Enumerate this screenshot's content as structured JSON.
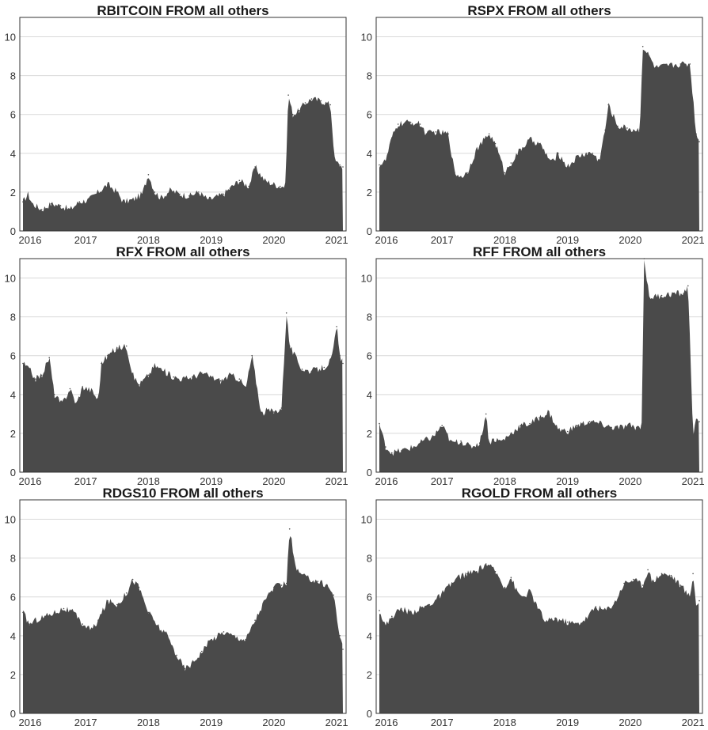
{
  "chart_data": [
    {
      "type": "area",
      "title": "RBITCOIN FROM all others",
      "xlabel": "",
      "ylabel": "",
      "xlim": [
        2015.95,
        2021.15
      ],
      "ylim": [
        0,
        11
      ],
      "x_ticks": [
        "2016",
        "2017",
        "2018",
        "2019",
        "2020",
        "2021"
      ],
      "y_ticks": [
        "0",
        "2",
        "4",
        "6",
        "8",
        "10"
      ],
      "grid": "horizontal",
      "x": [
        2016.0,
        2016.08,
        2016.15,
        2016.3,
        2016.45,
        2016.6,
        2016.75,
        2016.9,
        2017.05,
        2017.2,
        2017.35,
        2017.5,
        2017.6,
        2017.75,
        2017.9,
        2018.0,
        2018.1,
        2018.2,
        2018.35,
        2018.5,
        2018.65,
        2018.8,
        2018.95,
        2019.05,
        2019.2,
        2019.3,
        2019.45,
        2019.6,
        2019.7,
        2019.85,
        2020.0,
        2020.1,
        2020.18,
        2020.23,
        2020.3,
        2020.4,
        2020.5,
        2020.6,
        2020.75,
        2020.9,
        2020.97,
        2021.05,
        2021.1
      ],
      "values": [
        1.5,
        1.9,
        1.4,
        1.1,
        1.4,
        1.3,
        1.1,
        1.5,
        1.6,
        2.0,
        2.4,
        2.0,
        1.5,
        1.6,
        1.9,
        2.9,
        2.0,
        1.7,
        2.1,
        1.9,
        1.8,
        2.0,
        1.6,
        1.7,
        1.9,
        2.2,
        2.6,
        2.3,
        3.3,
        2.6,
        2.4,
        2.3,
        2.3,
        7.0,
        6.0,
        6.2,
        6.6,
        6.8,
        6.7,
        6.5,
        3.6,
        3.4,
        3.3
      ],
      "color": "#4a4a4a"
    },
    {
      "type": "area",
      "title": "RSPX FROM all others",
      "xlabel": "",
      "ylabel": "",
      "xlim": [
        2015.95,
        2021.15
      ],
      "ylim": [
        0,
        11
      ],
      "x_ticks": [
        "2016",
        "2017",
        "2018",
        "2019",
        "2020",
        "2021"
      ],
      "y_ticks": [
        "0",
        "2",
        "4",
        "6",
        "8",
        "10"
      ],
      "grid": "horizontal",
      "x": [
        2016.0,
        2016.1,
        2016.2,
        2016.3,
        2016.5,
        2016.65,
        2016.75,
        2016.9,
        2017.1,
        2017.2,
        2017.3,
        2017.4,
        2017.55,
        2017.75,
        2017.85,
        2018.0,
        2018.1,
        2018.25,
        2018.4,
        2018.55,
        2018.75,
        2018.85,
        2019.0,
        2019.15,
        2019.3,
        2019.4,
        2019.5,
        2019.6,
        2019.65,
        2019.8,
        2019.95,
        2020.05,
        2020.15,
        2020.2,
        2020.3,
        2020.4,
        2020.6,
        2020.8,
        2020.95,
        2021.05,
        2021.1
      ],
      "values": [
        3.4,
        3.6,
        4.8,
        5.5,
        5.6,
        5.5,
        5.0,
        5.1,
        5.0,
        3.0,
        2.8,
        3.0,
        4.2,
        5.0,
        4.5,
        3.0,
        3.5,
        4.2,
        4.7,
        4.5,
        3.5,
        4.0,
        3.3,
        3.8,
        4.0,
        4.0,
        3.6,
        5.2,
        6.5,
        5.4,
        5.3,
        5.2,
        5.2,
        9.5,
        9.0,
        8.4,
        8.5,
        8.6,
        8.6,
        5.0,
        4.6
      ],
      "color": "#4a4a4a"
    },
    {
      "type": "area",
      "title": "RFX FROM all others",
      "xlabel": "",
      "ylabel": "",
      "xlim": [
        2015.95,
        2021.15
      ],
      "ylim": [
        0,
        11
      ],
      "x_ticks": [
        "2016",
        "2017",
        "2018",
        "2019",
        "2020",
        "2021"
      ],
      "y_ticks": [
        "0",
        "2",
        "4",
        "6",
        "8",
        "10"
      ],
      "grid": "horizontal",
      "x": [
        2016.0,
        2016.1,
        2016.2,
        2016.3,
        2016.42,
        2016.5,
        2016.62,
        2016.75,
        2016.85,
        2016.95,
        2017.1,
        2017.2,
        2017.25,
        2017.35,
        2017.5,
        2017.65,
        2017.75,
        2017.85,
        2018.0,
        2018.1,
        2018.25,
        2018.4,
        2018.55,
        2018.7,
        2018.85,
        2019.0,
        2019.15,
        2019.3,
        2019.45,
        2019.55,
        2019.65,
        2019.8,
        2019.9,
        2020.0,
        2020.12,
        2020.2,
        2020.25,
        2020.33,
        2020.45,
        2020.6,
        2020.8,
        2020.92,
        2021.0,
        2021.05,
        2021.1
      ],
      "values": [
        5.6,
        5.3,
        4.8,
        5.0,
        5.9,
        4.0,
        3.5,
        4.3,
        3.5,
        4.4,
        4.2,
        3.7,
        5.6,
        6.0,
        6.4,
        6.5,
        5.0,
        4.5,
        5.0,
        5.5,
        5.2,
        4.9,
        4.8,
        4.9,
        5.1,
        4.9,
        4.7,
        5.0,
        4.8,
        4.3,
        6.0,
        3.0,
        3.2,
        3.1,
        3.3,
        8.2,
        6.5,
        6.0,
        5.3,
        5.2,
        5.4,
        5.8,
        7.5,
        6.0,
        5.6
      ],
      "color": "#4a4a4a"
    },
    {
      "type": "area",
      "title": "RFF FROM all others",
      "xlabel": "",
      "ylabel": "",
      "xlim": [
        2015.95,
        2021.15
      ],
      "ylim": [
        0,
        11
      ],
      "x_ticks": [
        "2016",
        "2017",
        "2018",
        "2019",
        "2020",
        "2021"
      ],
      "y_ticks": [
        "0",
        "2",
        "4",
        "6",
        "8",
        "10"
      ],
      "grid": "horizontal",
      "x": [
        2016.0,
        2016.1,
        2016.2,
        2016.35,
        2016.55,
        2016.7,
        2016.85,
        2017.0,
        2017.15,
        2017.3,
        2017.45,
        2017.6,
        2017.7,
        2017.75,
        2017.82,
        2017.95,
        2018.1,
        2018.25,
        2018.4,
        2018.55,
        2018.7,
        2018.85,
        2019.0,
        2019.15,
        2019.35,
        2019.5,
        2019.7,
        2019.85,
        2020.0,
        2020.1,
        2020.18,
        2020.22,
        2020.3,
        2020.5,
        2020.7,
        2020.85,
        2020.92,
        2021.0,
        2021.05,
        2021.1
      ],
      "values": [
        2.5,
        1.3,
        1.0,
        1.1,
        1.3,
        1.6,
        1.8,
        2.4,
        1.5,
        1.6,
        1.3,
        1.5,
        3.0,
        1.5,
        1.7,
        1.6,
        2.0,
        2.4,
        2.5,
        2.8,
        3.1,
        2.2,
        2.1,
        2.4,
        2.6,
        2.5,
        2.3,
        2.3,
        2.4,
        2.3,
        2.4,
        11.0,
        9.0,
        9.1,
        9.2,
        9.2,
        9.6,
        2.0,
        2.6,
        2.6
      ],
      "color": "#4a4a4a"
    },
    {
      "type": "area",
      "title": "RDGS10 FROM all others",
      "xlabel": "",
      "ylabel": "",
      "xlim": [
        2015.95,
        2021.15
      ],
      "ylim": [
        0,
        11
      ],
      "x_ticks": [
        "2016",
        "2017",
        "2018",
        "2019",
        "2020",
        "2021"
      ],
      "y_ticks": [
        "0",
        "2",
        "4",
        "6",
        "8",
        "10"
      ],
      "grid": "horizontal",
      "x": [
        2016.0,
        2016.1,
        2016.2,
        2016.35,
        2016.5,
        2016.65,
        2016.8,
        2016.95,
        2017.1,
        2017.2,
        2017.35,
        2017.5,
        2017.65,
        2017.75,
        2017.85,
        2018.0,
        2018.15,
        2018.3,
        2018.45,
        2018.58,
        2018.7,
        2018.85,
        2019.0,
        2019.2,
        2019.35,
        2019.55,
        2019.7,
        2019.85,
        2020.0,
        2020.12,
        2020.2,
        2020.25,
        2020.35,
        2020.5,
        2020.7,
        2020.85,
        2020.95,
        2021.05,
        2021.1
      ],
      "values": [
        5.2,
        4.6,
        4.8,
        5.0,
        5.2,
        5.4,
        5.2,
        4.6,
        4.3,
        4.8,
        5.8,
        5.6,
        6.2,
        6.9,
        6.5,
        5.2,
        4.5,
        4.0,
        3.0,
        2.3,
        2.6,
        3.2,
        3.8,
        4.2,
        4.0,
        3.8,
        4.8,
        5.8,
        6.5,
        6.6,
        6.7,
        9.5,
        7.4,
        7.0,
        6.8,
        6.6,
        6.1,
        4.0,
        3.3
      ],
      "color": "#4a4a4a"
    },
    {
      "type": "area",
      "title": "RGOLD FROM all others",
      "xlabel": "",
      "ylabel": "",
      "xlim": [
        2015.95,
        2021.15
      ],
      "ylim": [
        0,
        11
      ],
      "x_ticks": [
        "2016",
        "2017",
        "2018",
        "2019",
        "2020",
        "2021"
      ],
      "y_ticks": [
        "0",
        "2",
        "4",
        "6",
        "8",
        "10"
      ],
      "grid": "horizontal",
      "x": [
        2016.0,
        2016.1,
        2016.2,
        2016.35,
        2016.5,
        2016.65,
        2016.8,
        2016.95,
        2017.1,
        2017.25,
        2017.4,
        2017.55,
        2017.7,
        2017.78,
        2017.85,
        2018.0,
        2018.1,
        2018.2,
        2018.3,
        2018.4,
        2018.5,
        2018.65,
        2018.8,
        2019.0,
        2019.15,
        2019.3,
        2019.45,
        2019.6,
        2019.75,
        2019.9,
        2020.05,
        2020.2,
        2020.28,
        2020.35,
        2020.5,
        2020.65,
        2020.8,
        2020.95,
        2021.0,
        2021.05,
        2021.1
      ],
      "values": [
        5.3,
        4.5,
        5.0,
        5.4,
        5.2,
        5.4,
        5.6,
        6.0,
        6.5,
        7.0,
        7.2,
        7.3,
        7.7,
        7.5,
        7.3,
        6.5,
        7.0,
        6.2,
        6.0,
        6.3,
        5.6,
        4.7,
        4.9,
        4.7,
        4.6,
        4.9,
        5.5,
        5.3,
        5.7,
        6.7,
        6.9,
        6.6,
        7.4,
        6.8,
        7.2,
        7.1,
        6.6,
        6.0,
        7.2,
        5.5,
        5.8
      ],
      "color": "#4a4a4a"
    }
  ]
}
